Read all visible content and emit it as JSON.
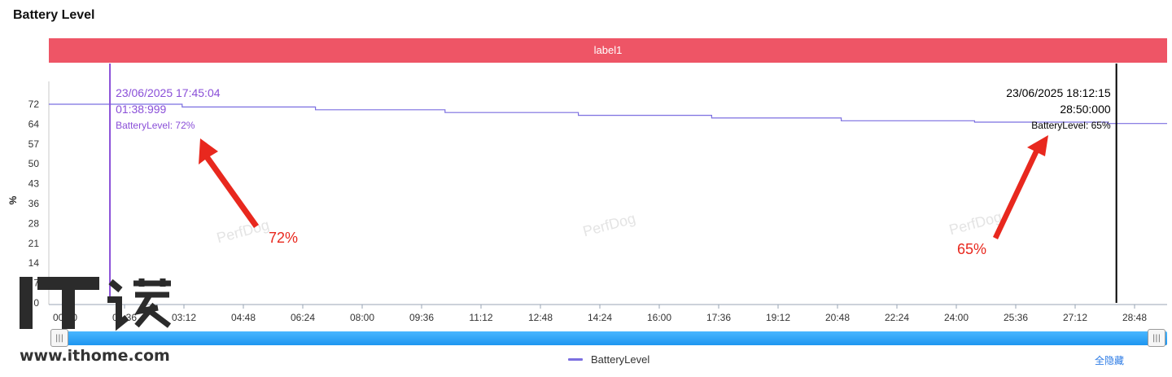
{
  "page_title": "Battery Level",
  "label_bar": "label1",
  "legend_label": "BatteryLevel",
  "hide_all_label": "全隐藏",
  "slider": {
    "left_handle_glyph": "|||",
    "right_handle_glyph": "|||"
  },
  "watermark_text": "PerfDog",
  "site_logo": {
    "url_text": "www.ithome.com",
    "logo_text": "IT之家"
  },
  "colors": {
    "series": "#7b6fe0",
    "label_bar": "#ee5566",
    "slider": "#2aa3f5",
    "annotation": "#e8281e",
    "cursor1": "#8a4fd8",
    "cursor2": "#000000"
  },
  "chart_data": {
    "type": "line",
    "ylabel": "%",
    "xlabel": "",
    "y_ticks": [
      "72",
      "64",
      "57",
      "50",
      "43",
      "36",
      "28",
      "21",
      "14",
      "7",
      "0"
    ],
    "x_ticks": [
      "00:00",
      "01:36",
      "03:12",
      "04:48",
      "06:24",
      "08:00",
      "09:36",
      "11:12",
      "12:48",
      "14:24",
      "16:00",
      "17:36",
      "19:12",
      "20:48",
      "22:24",
      "24:00",
      "25:36",
      "27:12",
      "28:48"
    ],
    "ylim": [
      0,
      72
    ],
    "xlim_minutes": [
      0,
      30.2
    ],
    "series": [
      {
        "name": "BatteryLevel",
        "x": [
          0,
          3.6,
          3.6,
          7.2,
          7.2,
          10.7,
          10.7,
          14.3,
          14.3,
          17.9,
          17.9,
          21.4,
          21.4,
          25,
          25,
          28.6,
          28.6,
          30.2
        ],
        "values": [
          72,
          72,
          71,
          71,
          70,
          70,
          69,
          69,
          68,
          68,
          67,
          67,
          66,
          66,
          65.5,
          65.5,
          65,
          65
        ]
      }
    ],
    "cursors": [
      {
        "x": 1.65,
        "datetime": "23/06/2025 17:45:04",
        "elapsed": "01:38:999",
        "value_text": "BatteryLevel: 72%"
      },
      {
        "x": 28.83,
        "datetime": "23/06/2025 18:12:15",
        "elapsed": "28:50:000",
        "value_text": "BatteryLevel: 65%"
      }
    ],
    "annotations": [
      {
        "text": "72%"
      },
      {
        "text": "65%"
      }
    ],
    "grid": false,
    "legend_position": "bottom-center"
  }
}
